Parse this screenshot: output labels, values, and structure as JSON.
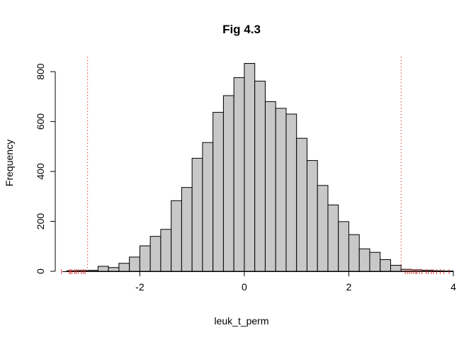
{
  "chart_data": {
    "type": "histogram",
    "title": "Fig 4.3",
    "xlabel": "leuk_t_perm",
    "ylabel": "Frequency",
    "xlim": [
      -3.7,
      4.0
    ],
    "ylim": [
      0,
      860
    ],
    "x_ticks": [
      -2,
      0,
      2,
      4
    ],
    "y_ticks": [
      0,
      200,
      400,
      600,
      800
    ],
    "bin_edges": [
      -3.4,
      -3.2,
      -3.0,
      -2.8,
      -2.6,
      -2.4,
      -2.2,
      -2.0,
      -1.8,
      -1.6,
      -1.4,
      -1.2,
      -1.0,
      -0.8,
      -0.6,
      -0.4,
      -0.2,
      0.0,
      0.2,
      0.4,
      0.6,
      0.8,
      1.0,
      1.2,
      1.4,
      1.6,
      1.8,
      2.0,
      2.2,
      2.4,
      2.6,
      2.8,
      3.0,
      3.2,
      3.4,
      3.6,
      3.8,
      4.0
    ],
    "counts": [
      2,
      3,
      4,
      20,
      15,
      32,
      57,
      102,
      140,
      168,
      283,
      336,
      453,
      516,
      637,
      704,
      776,
      833,
      762,
      680,
      653,
      630,
      533,
      444,
      344,
      266,
      199,
      147,
      90,
      76,
      47,
      24,
      8,
      6,
      4,
      2,
      1
    ],
    "reference_lines": {
      "x": [
        -3.0,
        3.0
      ],
      "color": "#e83a3a",
      "style": "dotted"
    },
    "rug_points": [
      -3.5,
      -3.35,
      -3.33,
      -3.3,
      -3.25,
      -3.22,
      -3.18,
      -3.12,
      -3.08,
      -3.05,
      3.08,
      3.12,
      3.16,
      3.2,
      3.24,
      3.28,
      3.3,
      3.35,
      3.4,
      3.48,
      3.52,
      3.58,
      3.62,
      3.68,
      3.75,
      3.82,
      3.92
    ],
    "rug_color": "#e23c3c",
    "bar_color": "#c8c8c8"
  }
}
